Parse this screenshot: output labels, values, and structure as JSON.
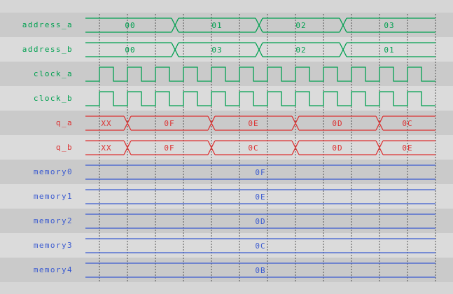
{
  "colors": {
    "green": "#00a050",
    "red": "#dc3232",
    "blue": "#3b5bd0",
    "grid": "#3a3a3a",
    "band_dark": "#cacaca",
    "band_light": "#dbdbdb",
    "background": "#d6d6d6"
  },
  "grid": {
    "first_t": 20,
    "spacing": 40,
    "count": 13
  },
  "time_span": 500,
  "signals": [
    {
      "name": "address_a",
      "kind": "bus",
      "color": "#00a050",
      "segments": [
        {
          "label": "00",
          "t0": 0,
          "t1": 128
        },
        {
          "label": "01",
          "t0": 128,
          "t1": 248
        },
        {
          "label": "02",
          "t0": 248,
          "t1": 368
        },
        {
          "label": "03",
          "t0": 368,
          "t1": 500
        }
      ]
    },
    {
      "name": "address_b",
      "kind": "bus",
      "color": "#00a050",
      "segments": [
        {
          "label": "00",
          "t0": 0,
          "t1": 128
        },
        {
          "label": "03",
          "t0": 128,
          "t1": 248
        },
        {
          "label": "02",
          "t0": 248,
          "t1": 368
        },
        {
          "label": "01",
          "t0": 368,
          "t1": 500
        }
      ]
    },
    {
      "name": "clock_a",
      "kind": "clock",
      "color": "#00a050",
      "first_rise": 20,
      "high": 20,
      "period": 40
    },
    {
      "name": "clock_b",
      "kind": "clock",
      "color": "#00a050",
      "first_rise": 20,
      "high": 20,
      "period": 40
    },
    {
      "name": "q_a",
      "kind": "bus",
      "color": "#dc3232",
      "segments": [
        {
          "label": "XX",
          "t0": 0,
          "t1": 60
        },
        {
          "label": "0F",
          "t0": 60,
          "t1": 180
        },
        {
          "label": "0E",
          "t0": 180,
          "t1": 300
        },
        {
          "label": "0D",
          "t0": 300,
          "t1": 420
        },
        {
          "label": "0C",
          "t0": 420,
          "t1": 500
        }
      ]
    },
    {
      "name": "q_b",
      "kind": "bus",
      "color": "#dc3232",
      "segments": [
        {
          "label": "XX",
          "t0": 0,
          "t1": 60
        },
        {
          "label": "0F",
          "t0": 60,
          "t1": 180
        },
        {
          "label": "0C",
          "t0": 180,
          "t1": 300
        },
        {
          "label": "0D",
          "t0": 300,
          "t1": 420
        },
        {
          "label": "0E",
          "t0": 420,
          "t1": 500
        }
      ]
    },
    {
      "name": "memory0",
      "kind": "bus",
      "color": "#3b5bd0",
      "segments": [
        {
          "label": "0F",
          "t0": 0,
          "t1": 500
        }
      ]
    },
    {
      "name": "memory1",
      "kind": "bus",
      "color": "#3b5bd0",
      "segments": [
        {
          "label": "0E",
          "t0": 0,
          "t1": 500
        }
      ]
    },
    {
      "name": "memory2",
      "kind": "bus",
      "color": "#3b5bd0",
      "segments": [
        {
          "label": "0D",
          "t0": 0,
          "t1": 500
        }
      ]
    },
    {
      "name": "memory3",
      "kind": "bus",
      "color": "#3b5bd0",
      "segments": [
        {
          "label": "0C",
          "t0": 0,
          "t1": 500
        }
      ]
    },
    {
      "name": "memory4",
      "kind": "bus",
      "color": "#3b5bd0",
      "segments": [
        {
          "label": "0B",
          "t0": 0,
          "t1": 500
        }
      ]
    }
  ]
}
